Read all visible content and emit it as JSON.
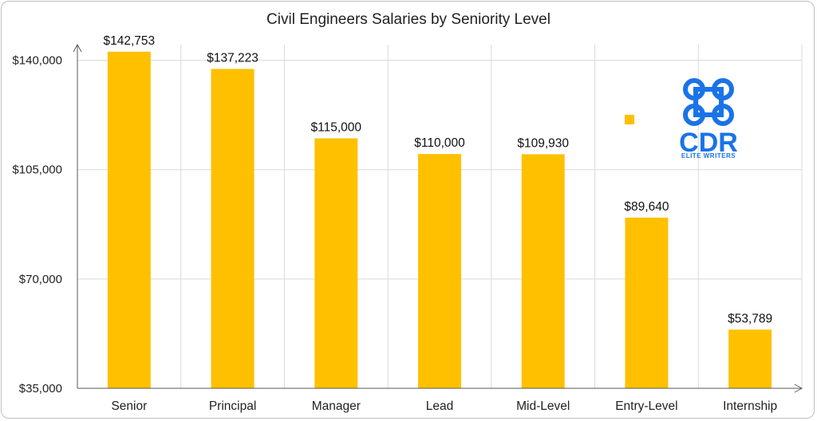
{
  "chart_data": {
    "type": "bar",
    "title": "Civil Engineers Salaries by Seniority Level",
    "xlabel": "",
    "ylabel": "",
    "categories": [
      "Senior",
      "Principal",
      "Manager",
      "Lead",
      "Mid-Level",
      "Entry-Level",
      "Internship"
    ],
    "values": [
      142753,
      137223,
      115000,
      110000,
      109930,
      89640,
      53789
    ],
    "data_labels": [
      "$142,753",
      "$137,223",
      "$115,000",
      "$110,000",
      "$109,930",
      "$89,640",
      "$53,789"
    ],
    "ylim": [
      35000,
      145000
    ],
    "yticks": [
      35000,
      70000,
      105000,
      140000
    ],
    "ytick_labels": [
      "$35,000",
      "$70,000",
      "$105,000",
      "$140,000"
    ],
    "grid": true,
    "bar_color": "#FFC000"
  },
  "logo": {
    "text": "CDR",
    "subtext": "ELITE WRITERS",
    "color": "#1a73e8",
    "icon": "command-key-icon"
  },
  "legend_marker_color": "#FFC000"
}
